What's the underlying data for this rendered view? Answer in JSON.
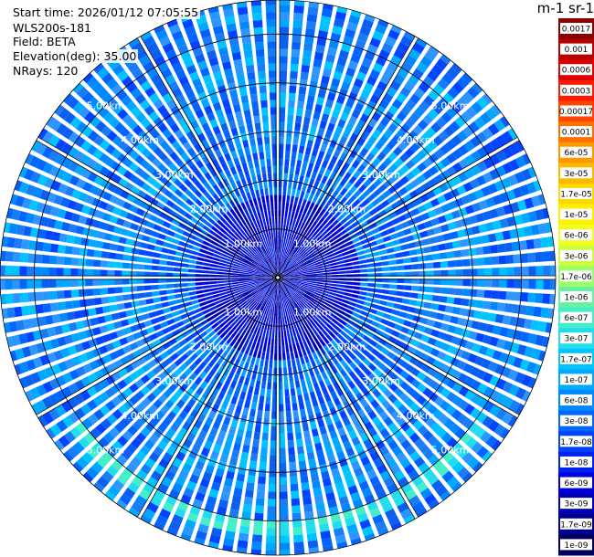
{
  "info": {
    "start_time": "Start time: 2026/01/12 07:05:55",
    "instrument": "WLS200s-181",
    "field": "Field: BETA",
    "elevation": "Elevation(deg): 35.00",
    "nrays": "NRays: 120"
  },
  "colorbar": {
    "unit_label": "m-1 sr-1",
    "ticks": [
      "0.0017",
      "0.001",
      "0.0006",
      "0.0003",
      "0.00017",
      "0.0001",
      "6e-05",
      "3e-05",
      "1.7e-05",
      "1e-05",
      "6e-06",
      "3e-06",
      "1.7e-06",
      "1e-06",
      "6e-07",
      "3e-07",
      "1.7e-07",
      "1e-07",
      "6e-08",
      "3e-08",
      "1.7e-08",
      "1e-08",
      "6e-09",
      "3e-09",
      "1.7e-09",
      "1e-09"
    ],
    "colors": [
      "#8b0000",
      "#b40000",
      "#dc0000",
      "#ff1a00",
      "#ff4400",
      "#ff7000",
      "#ff9800",
      "#ffb800",
      "#ffd800",
      "#fff000",
      "#f0ff20",
      "#ccff44",
      "#99ff66",
      "#66f2a0",
      "#44eec8",
      "#22ddee",
      "#00c4ff",
      "#00a8ff",
      "#0088ff",
      "#0066ff",
      "#0044ff",
      "#0022ee",
      "#0000dd",
      "#0000b4",
      "#00008b",
      "#000060"
    ]
  },
  "chart_data": {
    "type": "heatmap",
    "projection": "polar PPI",
    "n_rays": 120,
    "elevation_deg": 35.0,
    "field": "BETA",
    "range_rings_km": [
      1,
      2,
      3,
      4,
      5
    ],
    "range_ring_labels": [
      "1.00km",
      "2.00km",
      "3.00km",
      "4.00km",
      "5.00km"
    ],
    "max_range_km": 5.7,
    "color_scale": "log",
    "value_range": [
      1e-09,
      0.0017
    ],
    "typical_value": "3e-08 to 1.7e-07",
    "enhanced_band": {
      "range_km": [
        5.0,
        5.3
      ],
      "azimuth_deg": [
        125,
        235
      ],
      "value": "1.7e-07"
    },
    "grid": true
  }
}
